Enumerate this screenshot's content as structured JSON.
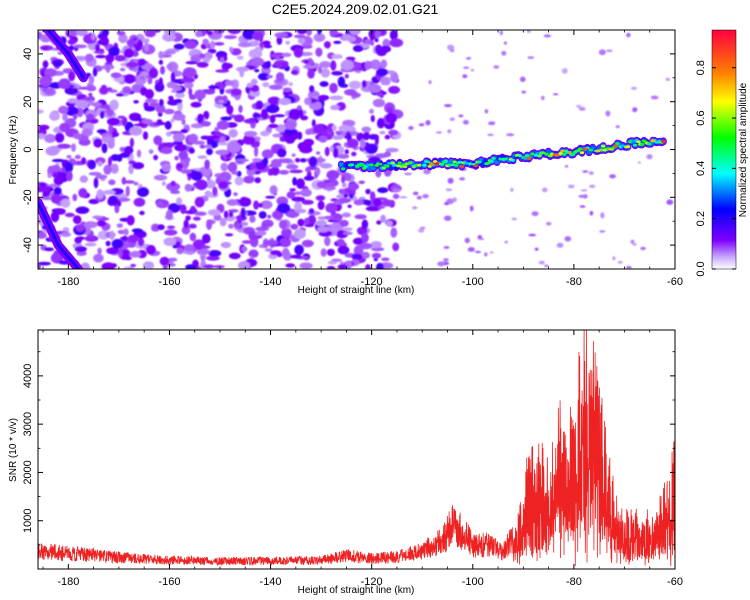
{
  "title": "C2E5.2024.209.02.01.G21",
  "chart_data": [
    {
      "type": "heatmap",
      "xlabel": "Height of straight line (km)",
      "ylabel": "Frequency (Hz)",
      "xlim": [
        -186,
        -60
      ],
      "ylim": [
        -50,
        50
      ],
      "xticks": [
        "-180",
        "-160",
        "-140",
        "-120",
        "-100",
        "-80",
        "-60"
      ],
      "yticks": [
        "-40",
        "-20",
        "0",
        "20",
        "40"
      ],
      "colorbar": {
        "label": "Normalized spectral amplitude",
        "range": [
          0,
          0.95
        ],
        "ticks": [
          "0.0",
          "0.2",
          "0.4",
          "0.6",
          "0.8"
        ],
        "colormap": [
          "#ffffff",
          "#7f00ff",
          "#0000ff",
          "#00ffff",
          "#00ff00",
          "#ffff00",
          "#ff8000",
          "#ff0040"
        ]
      },
      "features": [
        {
          "name": "main-trace",
          "x": [
            -126,
            -120,
            -110,
            -100,
            -90,
            -80,
            -70,
            -62
          ],
          "y": [
            -7,
            -7,
            -6,
            -6,
            -3,
            -1,
            2,
            4
          ],
          "amplitude": [
            0.3,
            0.45,
            0.65,
            0.7,
            0.6,
            0.75,
            0.7,
            0.6
          ]
        },
        {
          "name": "upper-streak",
          "x": [
            -186,
            -180,
            -177
          ],
          "y": [
            55,
            40,
            30
          ]
        },
        {
          "name": "lower-streak",
          "x": [
            -186,
            -182,
            -178
          ],
          "y": [
            -22,
            -40,
            -50
          ]
        }
      ],
      "noise_region_x": [
        -186,
        -115
      ],
      "noise_amplitude": [
        0.1,
        0.25
      ]
    },
    {
      "type": "line",
      "xlabel": "Height of straight line (km)",
      "ylabel": "SNR (10 * v/v)",
      "xlim": [
        -186,
        -60
      ],
      "ylim": [
        0,
        4950
      ],
      "xticks": [
        "-180",
        "-160",
        "-140",
        "-120",
        "-100",
        "-80",
        "-60"
      ],
      "yticks": [
        "1000",
        "2000",
        "3000",
        "4000"
      ],
      "series_color": "#ee2222",
      "envelope": {
        "x": [
          -186,
          -180,
          -170,
          -160,
          -150,
          -140,
          -130,
          -125,
          -120,
          -115,
          -110,
          -106,
          -104,
          -102,
          -100,
          -97,
          -94,
          -91,
          -89,
          -87,
          -85,
          -83,
          -81,
          -79,
          -78,
          -76,
          -74,
          -72,
          -70,
          -68,
          -66,
          -64,
          -62,
          -60
        ],
        "y": [
          500,
          450,
          330,
          250,
          230,
          230,
          250,
          380,
          300,
          350,
          500,
          800,
          1300,
          1100,
          650,
          700,
          500,
          1100,
          2300,
          2600,
          2200,
          3500,
          3100,
          4200,
          4850,
          4600,
          3200,
          1700,
          1200,
          1200,
          1100,
          1300,
          1700,
          2800
        ]
      }
    }
  ]
}
